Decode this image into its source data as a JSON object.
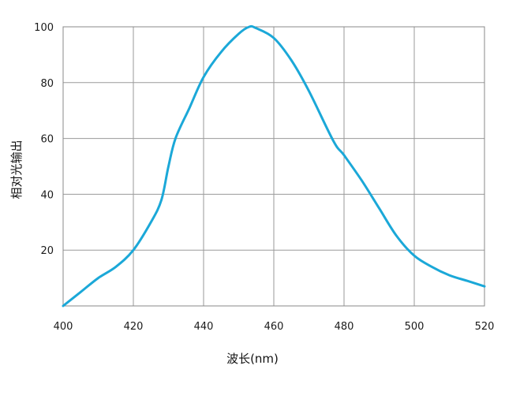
{
  "chart_data": {
    "type": "line",
    "title": "",
    "xlabel": "波长(nm)",
    "ylabel": "相对光输出",
    "xlim": [
      400,
      520
    ],
    "ylim": [
      0,
      100
    ],
    "x_ticks": [
      "400",
      "420",
      "440",
      "460",
      "480",
      "500",
      "520"
    ],
    "y_ticks": [
      "20",
      "40",
      "60",
      "80",
      "100"
    ],
    "grid": true,
    "legend": "none",
    "series": [
      {
        "color": "#1ba8d8",
        "points": [
          [
            400,
            0
          ],
          [
            405,
            5
          ],
          [
            410,
            10
          ],
          [
            415,
            14
          ],
          [
            420,
            20
          ],
          [
            425,
            30
          ],
          [
            428,
            38
          ],
          [
            430,
            50
          ],
          [
            432,
            60
          ],
          [
            436,
            71
          ],
          [
            440,
            82
          ],
          [
            445,
            91
          ],
          [
            450,
            97.5
          ],
          [
            453,
            100
          ],
          [
            455,
            99.5
          ],
          [
            460,
            96
          ],
          [
            465,
            88
          ],
          [
            470,
            77
          ],
          [
            477,
            59
          ],
          [
            480,
            54
          ],
          [
            485,
            45
          ],
          [
            490,
            35
          ],
          [
            495,
            25
          ],
          [
            500,
            18
          ],
          [
            505,
            14
          ],
          [
            510,
            11
          ],
          [
            515,
            9
          ],
          [
            520,
            7
          ]
        ]
      }
    ]
  }
}
